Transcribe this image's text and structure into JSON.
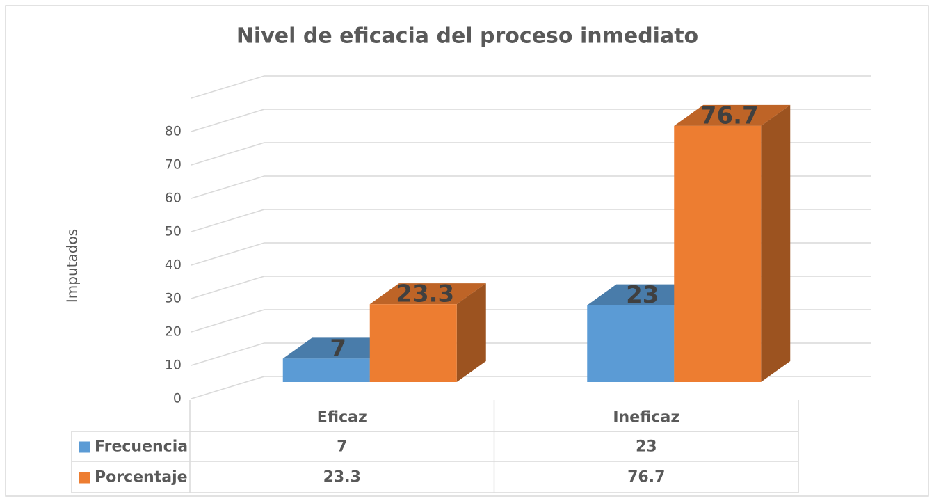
{
  "chart_data": {
    "type": "bar",
    "title": "Nivel de eficacia del proceso inmediato",
    "ylabel": "Imputados",
    "categories": [
      "Eficaz",
      "Ineficaz"
    ],
    "series": [
      {
        "name": "Frecuencia",
        "color": "#5b9bd5",
        "values": [
          7,
          23
        ]
      },
      {
        "name": "Porcentaje",
        "color": "#ed7d31",
        "values": [
          23.3,
          76.7
        ]
      }
    ],
    "ylim": [
      0,
      90
    ],
    "yticks": [
      0,
      10,
      20,
      30,
      40,
      50,
      60,
      70,
      80
    ],
    "grid": true
  }
}
